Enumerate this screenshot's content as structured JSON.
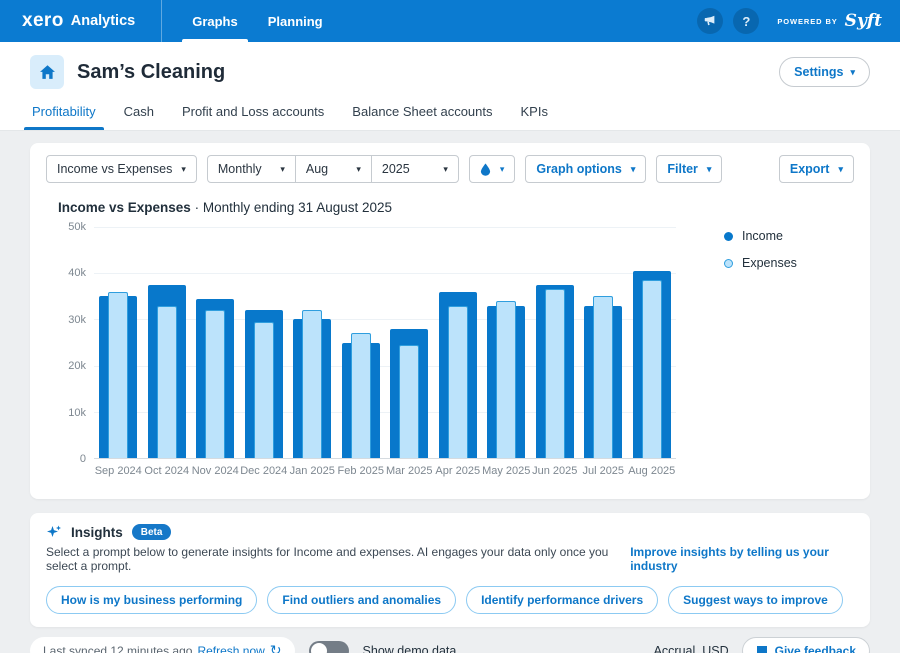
{
  "nav": {
    "logo": "xero",
    "product": "Analytics",
    "tabs": [
      {
        "label": "Graphs",
        "active": true
      },
      {
        "label": "Planning",
        "active": false
      }
    ],
    "help_label": "?",
    "powered_by_label": "POWERED BY",
    "powered_by_brand": "Syft"
  },
  "header": {
    "title": "Sam’s Cleaning",
    "settings_label": "Settings"
  },
  "tabs": {
    "items": [
      {
        "label": "Profitability",
        "active": true
      },
      {
        "label": "Cash",
        "active": false
      },
      {
        "label": "Profit and Loss accounts",
        "active": false
      },
      {
        "label": "Balance Sheet accounts",
        "active": false
      },
      {
        "label": "KPIs",
        "active": false
      }
    ]
  },
  "toolbar": {
    "metric_select": "Income vs Expenses",
    "period_select": "Monthly",
    "month_select": "Aug",
    "year_select": "2025",
    "graph_options_label": "Graph options",
    "filter_label": "Filter",
    "export_label": "Export"
  },
  "chart": {
    "title": "Income vs Expenses",
    "separator": "·",
    "subtitle": "Monthly ending 31 August 2025"
  },
  "chart_data": {
    "type": "bar",
    "title": "Income vs Expenses · Monthly ending 31 August 2025",
    "categories": [
      "Sep 2024",
      "Oct 2024",
      "Nov 2024",
      "Dec 2024",
      "Jan 2025",
      "Feb 2025",
      "Mar 2025",
      "Apr 2025",
      "May 2025",
      "Jun 2025",
      "Jul 2025",
      "Aug 2025"
    ],
    "series": [
      {
        "name": "Income",
        "color": "#0878CB",
        "values": [
          35000,
          37500,
          34500,
          32000,
          30000,
          25000,
          28000,
          36000,
          33000,
          37500,
          33000,
          40500
        ]
      },
      {
        "name": "Expenses",
        "color": "#BCE3FB",
        "border_color": "#2F9EDE",
        "values": [
          36000,
          33000,
          32000,
          29500,
          32000,
          27000,
          24500,
          33000,
          34000,
          36500,
          35000,
          38500
        ]
      }
    ],
    "ylim": [
      0,
      50000
    ],
    "y_ticks": [
      {
        "value": 50000,
        "label": "50k"
      },
      {
        "value": 40000,
        "label": "40k"
      },
      {
        "value": 30000,
        "label": "30k"
      },
      {
        "value": 20000,
        "label": "20k"
      },
      {
        "value": 10000,
        "label": "10k"
      },
      {
        "value": 0,
        "label": "0"
      }
    ],
    "grid": true,
    "legend_position": "right"
  },
  "insights": {
    "title": "Insights",
    "badge": "Beta",
    "description": "Select a prompt below to generate insights for Income and expenses. AI engages your data only once you select a prompt.",
    "industry_link": "Improve insights by telling us your industry",
    "prompts": [
      "How is my business performing",
      "Find outliers and anomalies",
      "Identify performance drivers",
      "Suggest ways to improve"
    ]
  },
  "footer": {
    "last_synced": "Last synced 12 minutes ago",
    "refresh_label": "Refresh now",
    "demo_toggle_label": "Show demo data",
    "basis": "Accrual, USD",
    "feedback_label": "Give feedback"
  },
  "colors": {
    "topbar": "#0B7BD1",
    "accent": "#0E77C8",
    "income": "#0878CB",
    "expenses_fill": "#BCE3FB",
    "expenses_border": "#2F9EDE"
  }
}
